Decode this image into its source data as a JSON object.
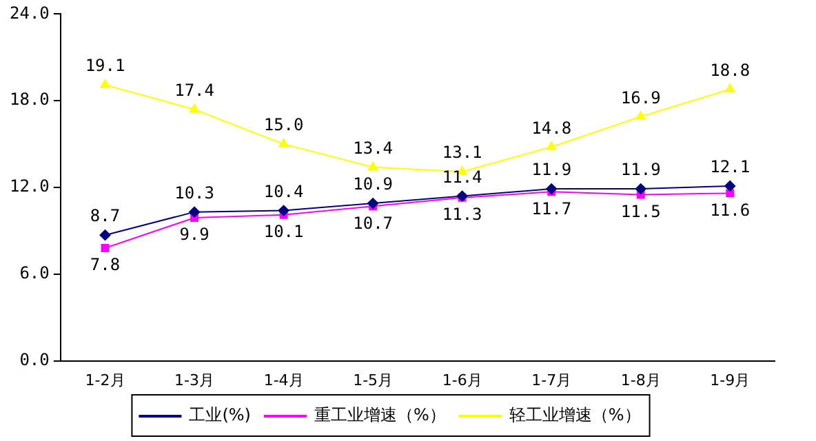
{
  "chart_data": {
    "type": "line",
    "categories": [
      "1-2月",
      "1-3月",
      "1-4月",
      "1-5月",
      "1-6月",
      "1-7月",
      "1-8月",
      "1-9月"
    ],
    "ylim": [
      0,
      24
    ],
    "yticks": [
      {
        "value": 0,
        "label": "0.0"
      },
      {
        "value": 6,
        "label": "6.0"
      },
      {
        "value": 12,
        "label": "12.0"
      },
      {
        "value": 18,
        "label": "18.0"
      },
      {
        "value": 24,
        "label": "24.0"
      }
    ],
    "grid": false,
    "legend": "bottom",
    "line_style": "solid",
    "series": [
      {
        "name": "工业(%)",
        "color": "#000080",
        "marker": "diamond",
        "values": [
          8.7,
          10.3,
          10.4,
          10.9,
          11.4,
          11.9,
          11.9,
          12.1
        ],
        "value_labels": [
          "8.7",
          "10.3",
          "10.4",
          "10.9",
          "11.4",
          "11.9",
          "11.9",
          "12.1"
        ]
      },
      {
        "name": "重工业增速（%）",
        "color": "#ff00ff",
        "marker": "square",
        "values": [
          7.8,
          9.9,
          10.1,
          10.7,
          11.3,
          11.7,
          11.5,
          11.6
        ],
        "value_labels": [
          "7.8",
          "9.9",
          "10.1",
          "10.7",
          "11.3",
          "11.7",
          "11.5",
          "11.6"
        ]
      },
      {
        "name": "轻工业增速（%）",
        "color": "#ffff00",
        "marker": "triangle",
        "values": [
          19.1,
          17.4,
          15.0,
          13.4,
          13.1,
          14.8,
          16.9,
          18.8
        ],
        "value_labels": [
          "19.1",
          "17.4",
          "15.0",
          "13.4",
          "13.1",
          "14.8",
          "16.9",
          "18.8"
        ]
      }
    ]
  }
}
